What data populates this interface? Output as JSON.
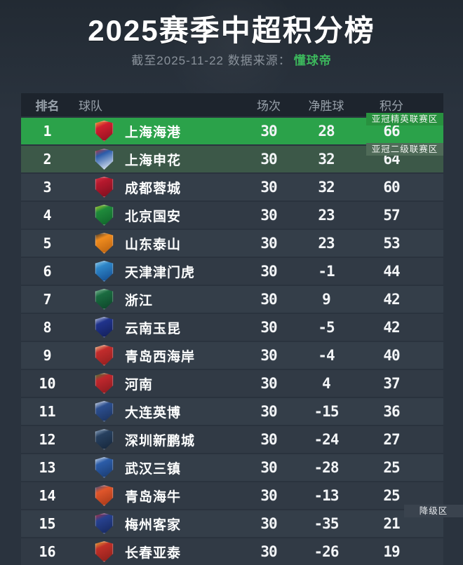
{
  "header": {
    "title": "2025赛季中超积分榜",
    "subtitle_prefix": "截至2025-11-22 数据来源：",
    "subtitle_source": "懂球帝"
  },
  "badges": {
    "elite": "亚冠精英联赛区",
    "tier2": "亚冠二级联赛区",
    "relegation": "降级区"
  },
  "colors": {
    "page_bg": "#2a333e",
    "header_row_bg": "#1d242d",
    "row_bg": "#333d48",
    "elite_row_green": "#2ba24a",
    "tier2_row_green": "#3c5848",
    "brand_green": "#3cb75c"
  },
  "table": {
    "columns": {
      "rank": "排名",
      "team": "球队",
      "played": "场次",
      "gd": "净胜球",
      "points": "积分"
    },
    "rows": [
      {
        "rank": "1",
        "team": "上海海港",
        "played": "30",
        "gd": "28",
        "points": "66",
        "zone": "elite",
        "logo_primary": "#d01f2f",
        "logo_secondary": "#8f1220",
        "logo_accent": "#f0b83c"
      },
      {
        "rank": "2",
        "team": "上海申花",
        "played": "30",
        "gd": "32",
        "points": "64",
        "zone": "tier2",
        "logo_primary": "#2a5caa",
        "logo_secondary": "#e8eef5",
        "logo_accent": "#c7342f"
      },
      {
        "rank": "3",
        "team": "成都蓉城",
        "played": "30",
        "gd": "32",
        "points": "60",
        "zone": "normal",
        "logo_primary": "#b5182d",
        "logo_secondary": "#7a0f1e",
        "logo_accent": "#d8394b"
      },
      {
        "rank": "4",
        "team": "北京国安",
        "played": "30",
        "gd": "23",
        "points": "57",
        "zone": "normal",
        "logo_primary": "#1f8a3b",
        "logo_secondary": "#10622a",
        "logo_accent": "#bcd532"
      },
      {
        "rank": "5",
        "team": "山东泰山",
        "played": "30",
        "gd": "23",
        "points": "53",
        "zone": "normal",
        "logo_primary": "#f08c1e",
        "logo_secondary": "#b65f10",
        "logo_accent": "#2b2b2b"
      },
      {
        "rank": "6",
        "team": "天津津门虎",
        "played": "30",
        "gd": "-1",
        "points": "44",
        "zone": "normal",
        "logo_primary": "#2e86c8",
        "logo_secondary": "#134a8e",
        "logo_accent": "#9fd4ef"
      },
      {
        "rank": "7",
        "team": "浙江",
        "played": "30",
        "gd": "9",
        "points": "42",
        "zone": "normal",
        "logo_primary": "#1a6b40",
        "logo_secondary": "#0d4429",
        "logo_accent": "#8fc5a5"
      },
      {
        "rank": "8",
        "team": "云南玉昆",
        "played": "30",
        "gd": "-5",
        "points": "42",
        "zone": "normal",
        "logo_primary": "#20338c",
        "logo_secondary": "#131f57",
        "logo_accent": "#cfd6e8"
      },
      {
        "rank": "9",
        "team": "青岛西海岸",
        "played": "30",
        "gd": "-4",
        "points": "40",
        "zone": "normal",
        "logo_primary": "#c22c2c",
        "logo_secondary": "#8f1f1f",
        "logo_accent": "#f2d8a0"
      },
      {
        "rank": "10",
        "team": "河南",
        "played": "30",
        "gd": "4",
        "points": "37",
        "zone": "normal",
        "logo_primary": "#c0272d",
        "logo_secondary": "#871a1f",
        "logo_accent": "#2f8a3c"
      },
      {
        "rank": "11",
        "team": "大连英博",
        "played": "30",
        "gd": "-15",
        "points": "36",
        "zone": "normal",
        "logo_primary": "#2c4f8f",
        "logo_secondary": "#1b315c",
        "logo_accent": "#e8ecf4"
      },
      {
        "rank": "12",
        "team": "深圳新鹏城",
        "played": "30",
        "gd": "-24",
        "points": "27",
        "zone": "normal",
        "logo_primary": "#27405f",
        "logo_secondary": "#16263a",
        "logo_accent": "#9fb6d0"
      },
      {
        "rank": "13",
        "team": "武汉三镇",
        "played": "30",
        "gd": "-28",
        "points": "25",
        "zone": "normal",
        "logo_primary": "#2b5ca8",
        "logo_secondary": "#1a3a6e",
        "logo_accent": "#dfe8f2"
      },
      {
        "rank": "14",
        "team": "青岛海牛",
        "played": "30",
        "gd": "-13",
        "points": "25",
        "zone": "normal",
        "logo_primary": "#e0562b",
        "logo_secondary": "#a33718",
        "logo_accent": "#2c4f8f"
      },
      {
        "rank": "15",
        "team": "梅州客家",
        "played": "30",
        "gd": "-35",
        "points": "21",
        "zone": "relegation",
        "logo_primary": "#27418f",
        "logo_secondary": "#16275c",
        "logo_accent": "#c22c35"
      },
      {
        "rank": "16",
        "team": "长春亚泰",
        "played": "30",
        "gd": "-26",
        "points": "19",
        "zone": "relegation",
        "logo_primary": "#c03028",
        "logo_secondary": "#8a1f1a",
        "logo_accent": "#e8b63a"
      }
    ]
  },
  "chart_data": {
    "type": "table",
    "title": "2025赛季中超积分榜",
    "subtitle": "截至2025-11-22 数据来源：懂球帝",
    "columns": [
      "排名",
      "球队",
      "场次",
      "净胜球",
      "积分"
    ],
    "rows": [
      [
        1,
        "上海海港",
        30,
        28,
        66
      ],
      [
        2,
        "上海申花",
        30,
        32,
        64
      ],
      [
        3,
        "成都蓉城",
        30,
        32,
        60
      ],
      [
        4,
        "北京国安",
        30,
        23,
        57
      ],
      [
        5,
        "山东泰山",
        30,
        23,
        53
      ],
      [
        6,
        "天津津门虎",
        30,
        -1,
        44
      ],
      [
        7,
        "浙江",
        30,
        9,
        42
      ],
      [
        8,
        "云南玉昆",
        30,
        -5,
        42
      ],
      [
        9,
        "青岛西海岸",
        30,
        -4,
        40
      ],
      [
        10,
        "河南",
        30,
        4,
        37
      ],
      [
        11,
        "大连英博",
        30,
        -15,
        36
      ],
      [
        12,
        "深圳新鹏城",
        30,
        -24,
        27
      ],
      [
        13,
        "武汉三镇",
        30,
        -28,
        25
      ],
      [
        14,
        "青岛海牛",
        30,
        -13,
        25
      ],
      [
        15,
        "梅州客家",
        30,
        -35,
        21
      ],
      [
        16,
        "长春亚泰",
        30,
        -26,
        19
      ]
    ],
    "annotations": [
      {
        "label": "亚冠精英联赛区",
        "applies_to_rank": 1
      },
      {
        "label": "亚冠二级联赛区",
        "applies_to_rank": 2
      },
      {
        "label": "降级区",
        "applies_to_rank": "15-16"
      }
    ]
  }
}
